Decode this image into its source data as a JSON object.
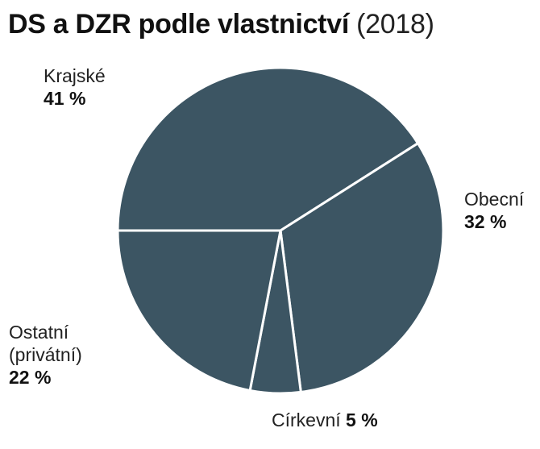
{
  "title": {
    "main": "DS a DZR podle vlastnictví",
    "year": "(2018)"
  },
  "chart_data": {
    "type": "pie",
    "title": "DS a DZR podle vlastnictví (2018)",
    "slices": [
      {
        "label": "Krajské",
        "value": 41,
        "value_label": "41 %",
        "color": "#3c5563"
      },
      {
        "label": "Obecní",
        "value": 32,
        "value_label": "32 %",
        "color": "#3c5563"
      },
      {
        "label": "Církevní",
        "value": 5,
        "value_label": "5 %",
        "color": "#3c5563"
      },
      {
        "label": "Ostatní (privátní)",
        "label_lines": [
          "Ostatní",
          "(privátní)"
        ],
        "value": 22,
        "value_label": "22 %",
        "color": "#3c5563"
      }
    ],
    "unit": "%",
    "legend": "none (direct labels)"
  }
}
